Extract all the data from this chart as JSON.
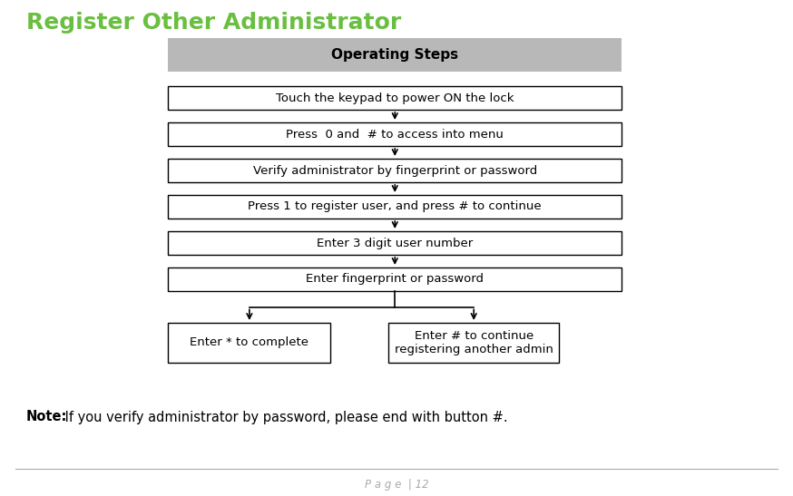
{
  "title": "Register Other Administrator",
  "title_color": "#6abf40",
  "title_fontsize": 18,
  "header_text": "Operating Steps",
  "header_bg": "#b8b8b8",
  "header_fontsize": 11,
  "steps": [
    "Touch the keypad to power ON the lock",
    "Press  0 and  # to access into menu",
    "Verify administrator by fingerprint or password",
    "Press 1 to register user, and press # to continue",
    "Enter 3 digit user number",
    "Enter fingerprint or password"
  ],
  "branch_left": "Enter * to complete",
  "branch_right": "Enter # to continue\nregistering another admin",
  "note_bold": "Note:",
  "note_text": " If you verify administrator by password, please end with button #.",
  "page_text": "P a g e  | 12",
  "arrow_color": "#000000",
  "step_fontsize": 9.5,
  "note_fontsize": 10.5,
  "page_fontsize": 8.5,
  "fig_width": 8.74,
  "fig_height": 5.47,
  "dpi": 100
}
